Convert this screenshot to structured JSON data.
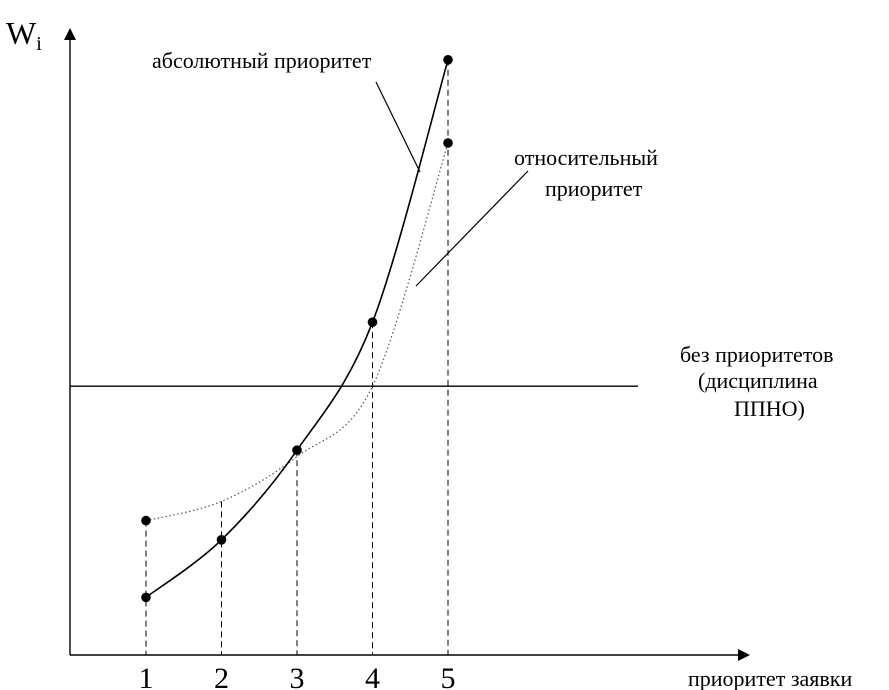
{
  "chart_data": {
    "type": "line",
    "ylabel_main": "W",
    "ylabel_sub": "i",
    "xlabel": "приоритет заявки",
    "categories": [
      "1",
      "2",
      "3",
      "4",
      "5"
    ],
    "series": [
      {
        "name": "абсолютный приоритет",
        "values": [
          0.18,
          0.36,
          0.64,
          1.04,
          1.86
        ],
        "style": "solid"
      },
      {
        "name": "относительный приоритет",
        "values": [
          0.42,
          0.48,
          0.62,
          0.84,
          1.6
        ],
        "style": "dotted"
      }
    ],
    "reference_line": {
      "name": "без приоритетов (дисциплина ППНО)",
      "value": 0.84
    },
    "labels": {
      "absolute": "абсолютный приоритет",
      "relative_1": "относительный",
      "relative_2": "приоритет",
      "none_1": "без приоритетов",
      "none_2": "(дисциплина",
      "none_3": "ППНО)"
    },
    "ylim": [
      -0.2,
      2.0
    ],
    "grid": false
  }
}
